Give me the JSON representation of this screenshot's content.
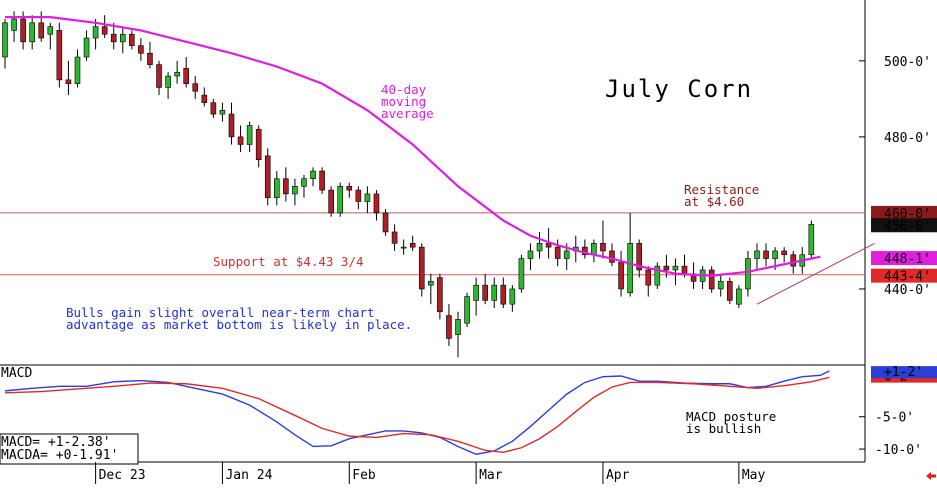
{
  "colors": {
    "up": "#2fb52f",
    "down": "#b01e28",
    "ma": "#e01ee0",
    "macd": "#2a3fd6",
    "macda": "#e02a2a",
    "support_line": "#e05a5a",
    "resistance_line": "#b06060",
    "bulls_text": "#2233cc",
    "trend_line": "#b03a5a"
  },
  "chart_data": [
    {
      "type": "candlestick",
      "title": "July Corn",
      "ylim": [
        420,
        516
      ],
      "yticks": [
        {
          "value": 500,
          "label": "500-0'"
        },
        {
          "value": 480,
          "label": "480-0'"
        },
        {
          "value": 440,
          "label": "440-0'"
        }
      ],
      "x_labels": [
        {
          "bar": 10,
          "label": "Dec 23"
        },
        {
          "bar": 24,
          "label": "Jan 24"
        },
        {
          "bar": 38,
          "label": "Feb"
        },
        {
          "bar": 52,
          "label": "Mar"
        },
        {
          "bar": 66,
          "label": "Apr"
        },
        {
          "bar": 81,
          "label": "May"
        }
      ],
      "bars": [
        {
          "o": 501,
          "h": 511,
          "l": 498,
          "c": 510
        },
        {
          "o": 508,
          "h": 513,
          "l": 505,
          "c": 511
        },
        {
          "o": 511,
          "h": 513,
          "l": 503,
          "c": 505
        },
        {
          "o": 505,
          "h": 512,
          "l": 503,
          "c": 510
        },
        {
          "o": 510,
          "h": 513,
          "l": 505,
          "c": 506
        },
        {
          "o": 507,
          "h": 510,
          "l": 503,
          "c": 509
        },
        {
          "o": 508,
          "h": 510,
          "l": 493,
          "c": 495
        },
        {
          "o": 495,
          "h": 500,
          "l": 491,
          "c": 494
        },
        {
          "o": 494,
          "h": 503,
          "l": 493,
          "c": 501
        },
        {
          "o": 501,
          "h": 508,
          "l": 500,
          "c": 506
        },
        {
          "o": 506,
          "h": 511,
          "l": 503,
          "c": 509
        },
        {
          "o": 509,
          "h": 512,
          "l": 506,
          "c": 507
        },
        {
          "o": 507,
          "h": 510,
          "l": 503,
          "c": 505
        },
        {
          "o": 505,
          "h": 509,
          "l": 502,
          "c": 507
        },
        {
          "o": 507,
          "h": 508,
          "l": 503,
          "c": 504
        },
        {
          "o": 504,
          "h": 506,
          "l": 500,
          "c": 502
        },
        {
          "o": 502,
          "h": 505,
          "l": 498,
          "c": 499
        },
        {
          "o": 499,
          "h": 500,
          "l": 491,
          "c": 493
        },
        {
          "o": 493,
          "h": 497,
          "l": 490,
          "c": 496
        },
        {
          "o": 496,
          "h": 500,
          "l": 494,
          "c": 497
        },
        {
          "o": 498,
          "h": 501,
          "l": 493,
          "c": 494
        },
        {
          "o": 494,
          "h": 496,
          "l": 490,
          "c": 492
        },
        {
          "o": 491,
          "h": 493,
          "l": 488,
          "c": 489
        },
        {
          "o": 489,
          "h": 490,
          "l": 485,
          "c": 486
        },
        {
          "o": 486,
          "h": 489,
          "l": 484,
          "c": 487
        },
        {
          "o": 486,
          "h": 489,
          "l": 478,
          "c": 480
        },
        {
          "o": 480,
          "h": 483,
          "l": 476,
          "c": 478
        },
        {
          "o": 478,
          "h": 484,
          "l": 476,
          "c": 483
        },
        {
          "o": 482,
          "h": 483,
          "l": 472,
          "c": 474
        },
        {
          "o": 475,
          "h": 477,
          "l": 462,
          "c": 464
        },
        {
          "o": 464,
          "h": 471,
          "l": 462,
          "c": 469
        },
        {
          "o": 469,
          "h": 472,
          "l": 463,
          "c": 465
        },
        {
          "o": 465,
          "h": 469,
          "l": 462,
          "c": 467
        },
        {
          "o": 467,
          "h": 470,
          "l": 464,
          "c": 469
        },
        {
          "o": 469,
          "h": 472,
          "l": 467,
          "c": 471
        },
        {
          "o": 471,
          "h": 472,
          "l": 465,
          "c": 466
        },
        {
          "o": 466,
          "h": 467,
          "l": 459,
          "c": 460
        },
        {
          "o": 460,
          "h": 468,
          "l": 459,
          "c": 467
        },
        {
          "o": 467,
          "h": 468,
          "l": 464,
          "c": 466
        },
        {
          "o": 466,
          "h": 467,
          "l": 461,
          "c": 463
        },
        {
          "o": 463,
          "h": 467,
          "l": 460,
          "c": 465
        },
        {
          "o": 465,
          "h": 466,
          "l": 458,
          "c": 460
        },
        {
          "o": 460,
          "h": 461,
          "l": 454,
          "c": 455
        },
        {
          "o": 455,
          "h": 457,
          "l": 450,
          "c": 452
        },
        {
          "o": 451,
          "h": 453,
          "l": 449,
          "c": 451
        },
        {
          "o": 452,
          "h": 454,
          "l": 450,
          "c": 451
        },
        {
          "o": 451,
          "h": 452,
          "l": 438,
          "c": 440
        },
        {
          "o": 441,
          "h": 444,
          "l": 436,
          "c": 442
        },
        {
          "o": 443,
          "h": 444,
          "l": 432,
          "c": 434
        },
        {
          "o": 433,
          "h": 436,
          "l": 425,
          "c": 427
        },
        {
          "o": 428,
          "h": 434,
          "l": 422,
          "c": 432
        },
        {
          "o": 431,
          "h": 439,
          "l": 430,
          "c": 438
        },
        {
          "o": 437,
          "h": 443,
          "l": 433,
          "c": 441
        },
        {
          "o": 441,
          "h": 444,
          "l": 436,
          "c": 437
        },
        {
          "o": 437,
          "h": 443,
          "l": 435,
          "c": 441
        },
        {
          "o": 441,
          "h": 443,
          "l": 435,
          "c": 436
        },
        {
          "o": 436,
          "h": 441,
          "l": 434,
          "c": 440
        },
        {
          "o": 440,
          "h": 449,
          "l": 439,
          "c": 448
        },
        {
          "o": 448,
          "h": 452,
          "l": 445,
          "c": 450
        },
        {
          "o": 450,
          "h": 455,
          "l": 448,
          "c": 452
        },
        {
          "o": 452,
          "h": 456,
          "l": 448,
          "c": 451
        },
        {
          "o": 451,
          "h": 453,
          "l": 446,
          "c": 448
        },
        {
          "o": 448,
          "h": 452,
          "l": 445,
          "c": 450
        },
        {
          "o": 450,
          "h": 454,
          "l": 447,
          "c": 451
        },
        {
          "o": 451,
          "h": 453,
          "l": 448,
          "c": 449
        },
        {
          "o": 449,
          "h": 453,
          "l": 447,
          "c": 452
        },
        {
          "o": 452,
          "h": 458,
          "l": 448,
          "c": 450
        },
        {
          "o": 450,
          "h": 452,
          "l": 446,
          "c": 447
        },
        {
          "o": 447,
          "h": 450,
          "l": 438,
          "c": 440
        },
        {
          "o": 439,
          "h": 460,
          "l": 438,
          "c": 452
        },
        {
          "o": 452,
          "h": 453,
          "l": 443,
          "c": 445
        },
        {
          "o": 445,
          "h": 446,
          "l": 438,
          "c": 441
        },
        {
          "o": 441,
          "h": 447,
          "l": 440,
          "c": 446
        },
        {
          "o": 446,
          "h": 449,
          "l": 443,
          "c": 445
        },
        {
          "o": 445,
          "h": 448,
          "l": 441,
          "c": 446
        },
        {
          "o": 446,
          "h": 449,
          "l": 443,
          "c": 444
        },
        {
          "o": 444,
          "h": 447,
          "l": 440,
          "c": 442
        },
        {
          "o": 442,
          "h": 446,
          "l": 440,
          "c": 445
        },
        {
          "o": 445,
          "h": 446,
          "l": 439,
          "c": 440
        },
        {
          "o": 440,
          "h": 444,
          "l": 438,
          "c": 442
        },
        {
          "o": 442,
          "h": 443,
          "l": 436,
          "c": 437
        },
        {
          "o": 436,
          "h": 441,
          "l": 435,
          "c": 440
        },
        {
          "o": 440,
          "h": 450,
          "l": 438,
          "c": 448
        },
        {
          "o": 448,
          "h": 452,
          "l": 445,
          "c": 450
        },
        {
          "o": 450,
          "h": 452,
          "l": 446,
          "c": 448
        },
        {
          "o": 448,
          "h": 451,
          "l": 445,
          "c": 450
        },
        {
          "o": 450,
          "h": 451,
          "l": 447,
          "c": 449
        },
        {
          "o": 449,
          "h": 450,
          "l": 444,
          "c": 446
        },
        {
          "o": 446,
          "h": 451,
          "l": 444,
          "c": 449
        },
        {
          "o": 449,
          "h": 458,
          "l": 448,
          "c": 457
        }
      ],
      "moving_average": [
        {
          "bar": 0,
          "v": 511.5
        },
        {
          "bar": 5,
          "v": 511.5
        },
        {
          "bar": 10,
          "v": 510
        },
        {
          "bar": 15,
          "v": 508
        },
        {
          "bar": 20,
          "v": 505
        },
        {
          "bar": 25,
          "v": 502
        },
        {
          "bar": 30,
          "v": 498.5
        },
        {
          "bar": 35,
          "v": 494
        },
        {
          "bar": 40,
          "v": 487
        },
        {
          "bar": 45,
          "v": 478
        },
        {
          "bar": 50,
          "v": 467
        },
        {
          "bar": 55,
          "v": 458
        },
        {
          "bar": 58,
          "v": 454
        },
        {
          "bar": 61,
          "v": 451.5
        },
        {
          "bar": 64,
          "v": 449.5
        },
        {
          "bar": 67,
          "v": 448
        },
        {
          "bar": 70,
          "v": 446
        },
        {
          "bar": 74,
          "v": 444
        },
        {
          "bar": 78,
          "v": 443.5
        },
        {
          "bar": 82,
          "v": 444.5
        },
        {
          "bar": 86,
          "v": 446.5
        },
        {
          "bar": 90,
          "v": 448.5
        }
      ],
      "price_labels": [
        {
          "label": "460-0'",
          "value": 460,
          "bg": "#8a1a1a"
        },
        {
          "label": "456-6'",
          "value": 456.75,
          "bg": "#111111"
        },
        {
          "label": "448-1'",
          "value": 448.125,
          "bg": "#e01ee0"
        },
        {
          "label": "443-4'",
          "value": 443.5,
          "bg": "#e02a2a"
        }
      ],
      "support": {
        "value": 443.75,
        "label": "Support at $4.43 3/4"
      },
      "resistance": {
        "value": 460,
        "label_line1": "Resistance",
        "label_line2": "at $4.60"
      },
      "ma_label": [
        "40-day",
        "moving",
        "average"
      ],
      "bulls_text": [
        "Bulls gain slight overall near-term chart",
        "advantage as market bottom is likely in place."
      ],
      "trendline": [
        {
          "bar": 83,
          "v": 436
        },
        {
          "bar": 96,
          "v": 452
        }
      ]
    },
    {
      "type": "line",
      "title": "MACD",
      "ylim": [
        -12,
        3
      ],
      "yticks": [
        {
          "value": -5,
          "label": "-5-0'"
        },
        {
          "value": -10,
          "label": "-10-0'"
        }
      ],
      "series": [
        {
          "name": "MACD",
          "values": [
            {
              "bar": 0,
              "v": -1
            },
            {
              "bar": 3,
              "v": -0.6
            },
            {
              "bar": 6,
              "v": -0.3
            },
            {
              "bar": 9,
              "v": -0.3
            },
            {
              "bar": 12,
              "v": 0.4
            },
            {
              "bar": 15,
              "v": 0.6
            },
            {
              "bar": 18,
              "v": 0.3
            },
            {
              "bar": 21,
              "v": -0.6
            },
            {
              "bar": 24,
              "v": -1.5
            },
            {
              "bar": 27,
              "v": -3.2
            },
            {
              "bar": 30,
              "v": -5.8
            },
            {
              "bar": 32,
              "v": -7.8
            },
            {
              "bar": 34,
              "v": -9.6
            },
            {
              "bar": 36,
              "v": -9.5
            },
            {
              "bar": 38,
              "v": -8.4
            },
            {
              "bar": 40,
              "v": -7.8
            },
            {
              "bar": 42,
              "v": -7.2
            },
            {
              "bar": 44,
              "v": -7.2
            },
            {
              "bar": 46,
              "v": -7.5
            },
            {
              "bar": 48,
              "v": -8.2
            },
            {
              "bar": 50,
              "v": -9.6
            },
            {
              "bar": 52,
              "v": -10.8
            },
            {
              "bar": 54,
              "v": -10.3
            },
            {
              "bar": 56,
              "v": -8.8
            },
            {
              "bar": 58,
              "v": -6.5
            },
            {
              "bar": 60,
              "v": -4
            },
            {
              "bar": 62,
              "v": -1.5
            },
            {
              "bar": 64,
              "v": 0.3
            },
            {
              "bar": 66,
              "v": 1.2
            },
            {
              "bar": 68,
              "v": 1.3
            },
            {
              "bar": 70,
              "v": 0.5
            },
            {
              "bar": 72,
              "v": 0.5
            },
            {
              "bar": 75,
              "v": 0.2
            },
            {
              "bar": 78,
              "v": 0.1
            },
            {
              "bar": 80,
              "v": 0.1
            },
            {
              "bar": 82,
              "v": -0.5
            },
            {
              "bar": 84,
              "v": -0.3
            },
            {
              "bar": 86,
              "v": 0.5
            },
            {
              "bar": 88,
              "v": 1.2
            },
            {
              "bar": 90,
              "v": 1.4
            },
            {
              "bar": 91,
              "v": 2.1
            }
          ]
        },
        {
          "name": "MACDA",
          "values": [
            {
              "bar": 0,
              "v": -1.3
            },
            {
              "bar": 4,
              "v": -1.1
            },
            {
              "bar": 8,
              "v": -0.7
            },
            {
              "bar": 12,
              "v": -0.3
            },
            {
              "bar": 16,
              "v": 0.2
            },
            {
              "bar": 20,
              "v": 0.1
            },
            {
              "bar": 24,
              "v": -0.6
            },
            {
              "bar": 28,
              "v": -2.2
            },
            {
              "bar": 32,
              "v": -4.8
            },
            {
              "bar": 35,
              "v": -6.8
            },
            {
              "bar": 38,
              "v": -8
            },
            {
              "bar": 41,
              "v": -8.2
            },
            {
              "bar": 44,
              "v": -7.6
            },
            {
              "bar": 47,
              "v": -7.8
            },
            {
              "bar": 50,
              "v": -8.8
            },
            {
              "bar": 53,
              "v": -10.2
            },
            {
              "bar": 55,
              "v": -10.5
            },
            {
              "bar": 57,
              "v": -9.8
            },
            {
              "bar": 59,
              "v": -8.4
            },
            {
              "bar": 61,
              "v": -6.5
            },
            {
              "bar": 63,
              "v": -4.2
            },
            {
              "bar": 65,
              "v": -2
            },
            {
              "bar": 67,
              "v": -0.4
            },
            {
              "bar": 69,
              "v": 0.3
            },
            {
              "bar": 72,
              "v": 0.3
            },
            {
              "bar": 76,
              "v": 0.1
            },
            {
              "bar": 80,
              "v": -0.3
            },
            {
              "bar": 83,
              "v": -0.6
            },
            {
              "bar": 86,
              "v": -0.2
            },
            {
              "bar": 89,
              "v": 0.4
            },
            {
              "bar": 91,
              "v": 1.1
            }
          ]
        }
      ],
      "readout": [
        "MACD=   +1-2.38'",
        "MACDA= +0-1.91'"
      ],
      "price_labels": [
        {
          "label": "+1-2'",
          "value": 1.9,
          "bg": "#2a3fd6"
        },
        {
          "label": "0-2'",
          "value": 1.2,
          "bg": "#e02a2a"
        }
      ],
      "annotation": [
        "MACD posture",
        "is bullish"
      ]
    }
  ]
}
